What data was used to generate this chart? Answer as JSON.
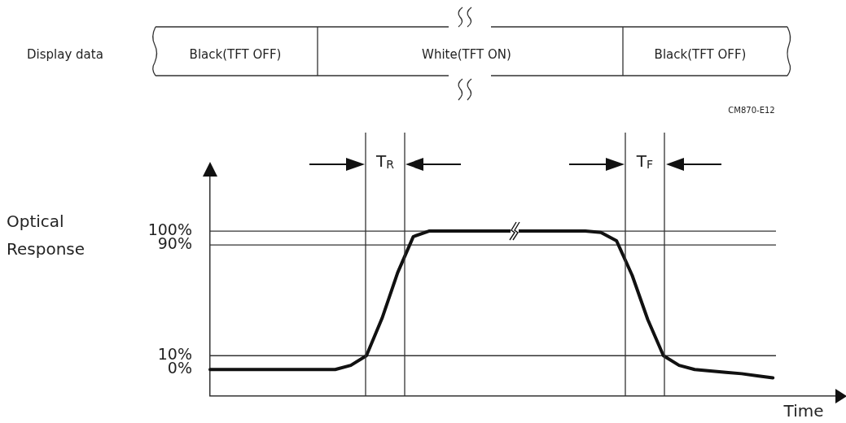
{
  "chart_data": {
    "type": "line",
    "ylabel": "Optical Response",
    "xlabel": "Time",
    "categories": [
      null,
      null,
      null,
      null,
      null,
      null,
      null,
      null,
      null,
      null,
      null,
      null,
      null,
      null,
      null,
      null,
      null,
      null,
      null,
      null,
      null,
      null,
      null,
      null,
      null,
      null,
      null,
      null,
      null,
      null,
      null,
      null,
      null,
      null,
      null,
      null,
      null,
      null,
      null,
      null,
      null
    ],
    "series": [
      {
        "color": "#111111",
        "values": [
          0,
          0,
          0,
          0,
          0,
          0,
          0,
          0,
          0,
          3,
          10,
          37,
          70,
          96,
          100,
          100,
          100,
          100,
          100,
          100,
          100,
          100,
          100,
          100,
          100,
          99,
          93,
          68,
          36,
          10,
          3,
          0,
          -1,
          -2,
          -3,
          -4.5,
          -6,
          null,
          null,
          null,
          null
        ]
      }
    ],
    "ylim": [
      -19,
      140
    ],
    "yticks": [
      {
        "value": 0,
        "label": "0%"
      },
      {
        "value": 10,
        "label": "10%"
      },
      {
        "value": 90,
        "label": "90%"
      },
      {
        "value": 100,
        "label": "100%"
      }
    ],
    "tick_labels": "y",
    "marker": "none",
    "line_style": "solid",
    "ref_lines": [
      {
        "axis": "y",
        "value": 10
      },
      {
        "axis": "y",
        "value": 90
      },
      {
        "axis": "y",
        "value": 100
      }
    ],
    "annotations": [
      "Display data",
      "Black(TFT OFF)",
      "White(TFT ON)",
      "Black(TFT OFF)",
      "CM870-E12",
      "T$_{R}$",
      "T$_{F}$"
    ]
  }
}
